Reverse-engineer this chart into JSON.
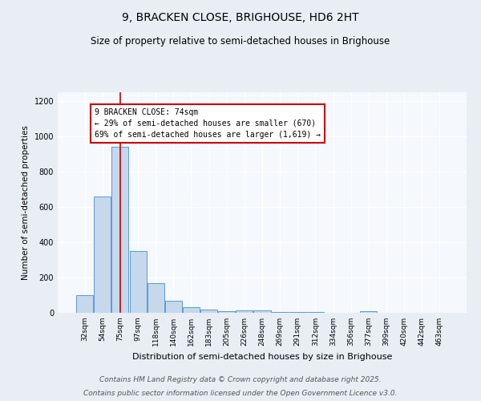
{
  "title": "9, BRACKEN CLOSE, BRIGHOUSE, HD6 2HT",
  "subtitle": "Size of property relative to semi-detached houses in Brighouse",
  "xlabel": "Distribution of semi-detached houses by size in Brighouse",
  "ylabel": "Number of semi-detached properties",
  "categories": [
    "32sqm",
    "54sqm",
    "75sqm",
    "97sqm",
    "118sqm",
    "140sqm",
    "162sqm",
    "183sqm",
    "205sqm",
    "226sqm",
    "248sqm",
    "269sqm",
    "291sqm",
    "312sqm",
    "334sqm",
    "356sqm",
    "377sqm",
    "399sqm",
    "420sqm",
    "442sqm",
    "463sqm"
  ],
  "values": [
    100,
    660,
    940,
    350,
    170,
    70,
    30,
    20,
    10,
    15,
    12,
    5,
    4,
    5,
    0,
    0,
    8,
    0,
    0,
    0,
    0
  ],
  "bar_color": "#c5d8ec",
  "bar_edge_color": "#5b9bd5",
  "annotation_text": "9 BRACKEN CLOSE: 74sqm\n← 29% of semi-detached houses are smaller (670)\n69% of semi-detached houses are larger (1,619) →",
  "vline_color": "#cc0000",
  "ylim": [
    0,
    1250
  ],
  "yticks": [
    0,
    200,
    400,
    600,
    800,
    1000,
    1200
  ],
  "footer_line1": "Contains HM Land Registry data © Crown copyright and database right 2025.",
  "footer_line2": "Contains public sector information licensed under the Open Government Licence v3.0.",
  "background_color": "#e8eef4",
  "plot_bg_color": "#f5f8fc"
}
